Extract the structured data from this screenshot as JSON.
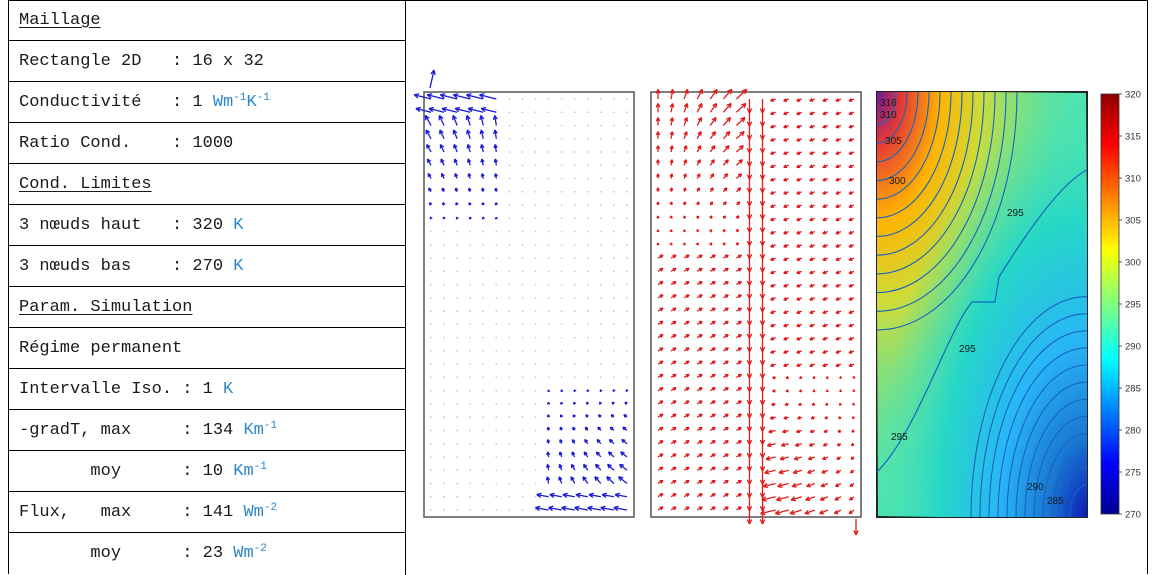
{
  "params": {
    "rows": [
      {
        "label": "Maillage",
        "value": "",
        "unit": "",
        "sup": "",
        "unit2": "",
        "sup2": "",
        "heading": true
      },
      {
        "label": "Rectangle 2D   ",
        "value": ": 16 x 32",
        "unit": "",
        "sup": "",
        "unit2": "",
        "sup2": "",
        "heading": false
      },
      {
        "label": "Conductivité   ",
        "value": ": 1 ",
        "unit": "Wm",
        "sup": "-1",
        "unit2": "K",
        "sup2": "-1",
        "heading": false
      },
      {
        "label": "Ratio Cond.    ",
        "value": ": 1000",
        "unit": "",
        "sup": "",
        "unit2": "",
        "sup2": "",
        "heading": false
      },
      {
        "label": "Cond. Limites",
        "value": "",
        "unit": "",
        "sup": "",
        "unit2": "",
        "sup2": "",
        "heading": true
      },
      {
        "label": "3 nœuds haut   ",
        "value": ": 320 ",
        "unit": "K",
        "sup": "",
        "unit2": "",
        "sup2": "",
        "heading": false
      },
      {
        "label": "3 nœuds bas    ",
        "value": ": 270 ",
        "unit": "K",
        "sup": "",
        "unit2": "",
        "sup2": "",
        "heading": false
      },
      {
        "label": "Param. Simulation",
        "value": "",
        "unit": "",
        "sup": "",
        "unit2": "",
        "sup2": "",
        "heading": true
      },
      {
        "label": "Régime permanent",
        "value": "",
        "unit": "",
        "sup": "",
        "unit2": "",
        "sup2": "",
        "heading": false
      },
      {
        "label": "Intervalle Iso. ",
        "value": ": 1 ",
        "unit": "K",
        "sup": "",
        "unit2": "",
        "sup2": "",
        "heading": false
      },
      {
        "label": "-gradT, max     ",
        "value": ": 134 ",
        "unit": "Km",
        "sup": "-1",
        "unit2": "",
        "sup2": "",
        "heading": false
      },
      {
        "label": "       moy      ",
        "value": ": 10 ",
        "unit": "Km",
        "sup": "-1",
        "unit2": "",
        "sup2": "",
        "heading": false
      },
      {
        "label": "Flux,   max     ",
        "value": ": 141 ",
        "unit": "Wm",
        "sup": "-2",
        "unit2": "",
        "sup2": "",
        "heading": false
      },
      {
        "label": "       moy      ",
        "value": ": 23 ",
        "unit": "Wm",
        "sup": "-2",
        "unit2": "",
        "sup2": "",
        "heading": false
      }
    ]
  },
  "figure": {
    "panels": {
      "gradient_color": "#1a1ad4",
      "flux_color": "#e01a1a"
    },
    "contour_labels": [
      "316",
      "310",
      "305",
      "300",
      "295",
      "295",
      "295",
      "290",
      "285"
    ],
    "colorbar": {
      "ticks": [
        "320",
        "315",
        "310",
        "305",
        "300",
        "295",
        "290",
        "285",
        "280",
        "275",
        "270"
      ],
      "range": [
        270,
        320
      ]
    }
  }
}
